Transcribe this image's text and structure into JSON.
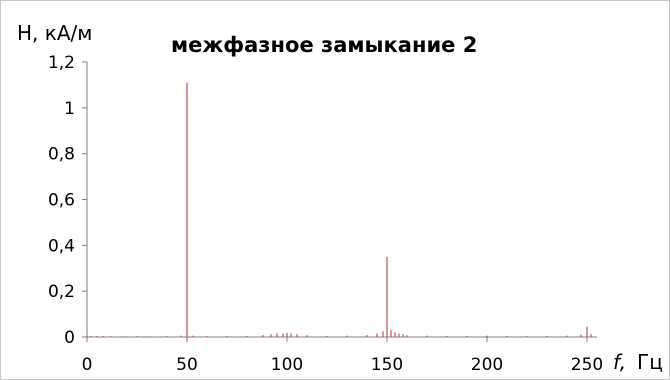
{
  "chart_data": {
    "type": "bar",
    "title": "межфазное замыкание 2",
    "ylabel": "H, кА/м",
    "xlabel_var": "f,",
    "xlabel_unit": "Гц",
    "xlim": [
      0,
      255
    ],
    "ylim": [
      0,
      1.2
    ],
    "x_ticks": [
      0,
      50,
      100,
      150,
      200,
      250
    ],
    "x_tick_labels": [
      "0",
      "50",
      "100",
      "150",
      "200",
      "250"
    ],
    "y_ticks": [
      0,
      0.2,
      0.4,
      0.6,
      0.8,
      1.0,
      1.2
    ],
    "y_tick_labels": [
      "0",
      "0,2",
      "0,4",
      "0,6",
      "0,8",
      "1",
      "1,2"
    ],
    "grid": false,
    "legend": "none",
    "color": "#c0504d",
    "x": [
      0,
      2,
      5,
      8,
      12,
      18,
      25,
      30,
      40,
      47,
      50,
      53,
      60,
      70,
      80,
      88,
      92,
      95,
      98,
      100,
      102,
      105,
      110,
      120,
      130,
      140,
      145,
      148,
      150,
      152,
      154,
      156,
      158,
      160,
      170,
      180,
      190,
      200,
      210,
      220,
      230,
      240,
      247,
      250,
      252
    ],
    "values": [
      0.006,
      0.005,
      0.005,
      0.004,
      0.004,
      0.003,
      0.004,
      0.003,
      0.004,
      0.006,
      1.11,
      0.006,
      0.004,
      0.004,
      0.005,
      0.008,
      0.012,
      0.015,
      0.016,
      0.018,
      0.015,
      0.012,
      0.008,
      0.005,
      0.006,
      0.008,
      0.015,
      0.025,
      0.35,
      0.03,
      0.02,
      0.015,
      0.012,
      0.008,
      0.006,
      0.005,
      0.005,
      0.006,
      0.005,
      0.004,
      0.005,
      0.006,
      0.01,
      0.045,
      0.012
    ]
  }
}
